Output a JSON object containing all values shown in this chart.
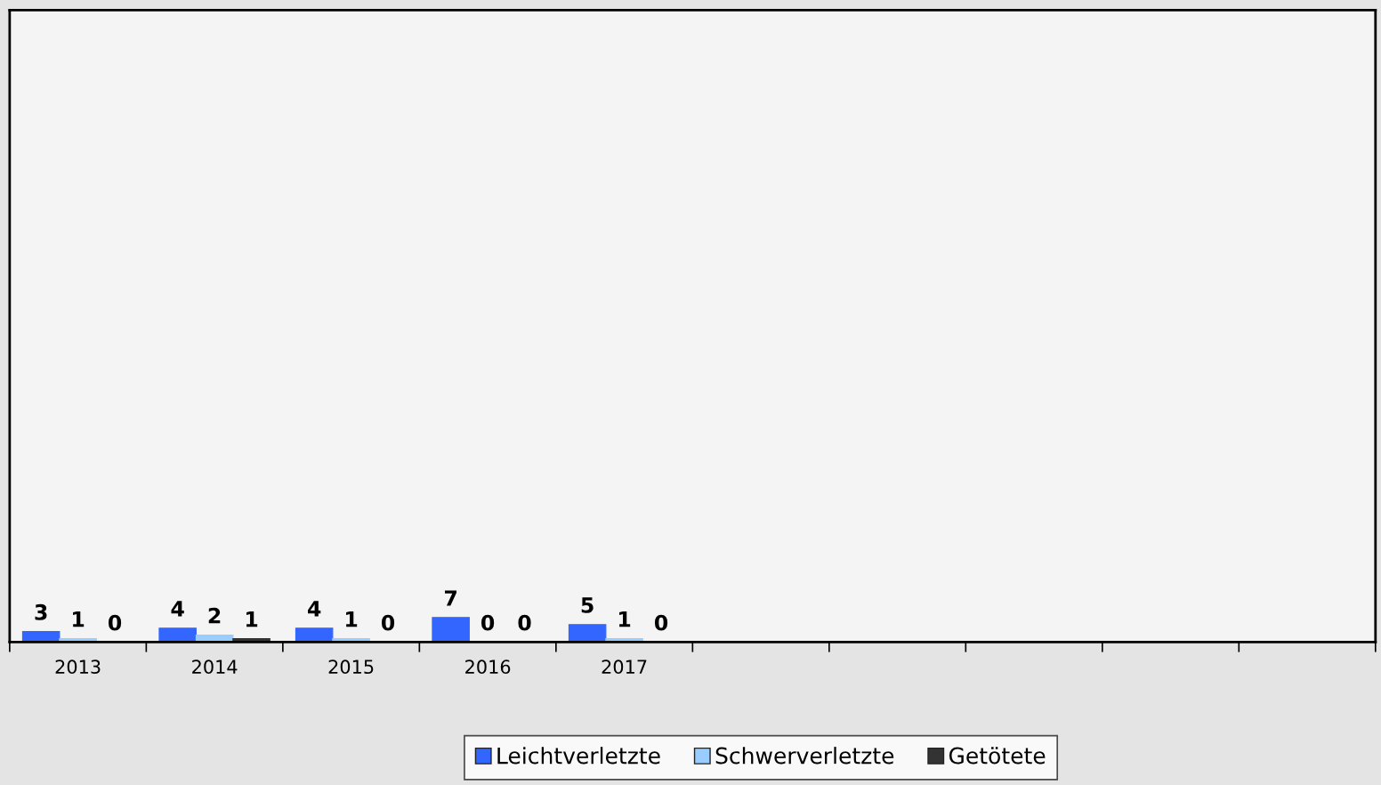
{
  "chart_data": {
    "type": "bar",
    "categories": [
      "2013",
      "2014",
      "2015",
      "2016",
      "2017",
      null,
      null,
      null,
      null,
      null
    ],
    "series": [
      {
        "name": "Leichtverletzte",
        "color": "#3366ff",
        "values": [
          3,
          4,
          4,
          7,
          5,
          null,
          null,
          null,
          null,
          null
        ]
      },
      {
        "name": "Schwerverletzte",
        "color": "#99ccff",
        "values": [
          1,
          2,
          1,
          0,
          1,
          null,
          null,
          null,
          null,
          null
        ]
      },
      {
        "name": "Getötete",
        "color": "#333333",
        "values": [
          0,
          1,
          0,
          0,
          0,
          null,
          null,
          null,
          null,
          null
        ]
      }
    ],
    "ylim": [
      0,
      180
    ],
    "data_labels": true,
    "legend": "bottom",
    "grid": false,
    "tick_labels": "x"
  }
}
